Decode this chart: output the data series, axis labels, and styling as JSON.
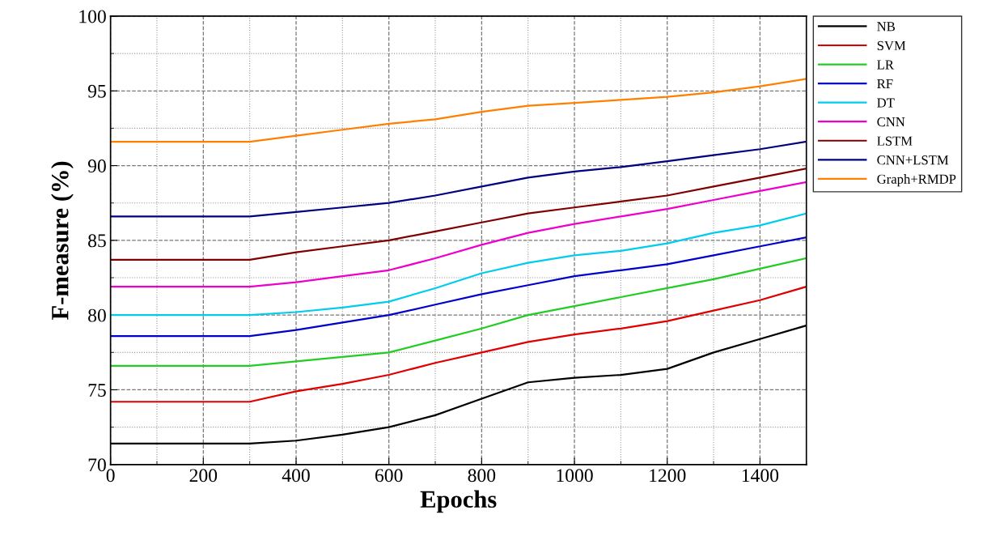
{
  "chart_data": {
    "type": "line",
    "xlabel": "Epochs",
    "ylabel": "F-measure (%)",
    "x": [
      0,
      100,
      200,
      300,
      400,
      500,
      600,
      700,
      800,
      900,
      1000,
      1100,
      1200,
      1300,
      1400,
      1500
    ],
    "series": [
      {
        "name": "NB",
        "color": "#000000",
        "values": [
          71.4,
          71.4,
          71.4,
          71.4,
          71.6,
          72.0,
          72.5,
          73.3,
          74.4,
          75.5,
          75.8,
          76.0,
          76.4,
          77.5,
          78.4,
          79.3
        ]
      },
      {
        "name": "SVM",
        "color": "#e00000",
        "values": [
          74.2,
          74.2,
          74.2,
          74.2,
          74.9,
          75.4,
          76.0,
          76.8,
          77.5,
          78.2,
          78.7,
          79.1,
          79.6,
          80.3,
          81.0,
          81.9
        ]
      },
      {
        "name": "LR",
        "color": "#22cc22",
        "values": [
          76.6,
          76.6,
          76.6,
          76.6,
          76.9,
          77.2,
          77.5,
          78.3,
          79.1,
          80.0,
          80.6,
          81.2,
          81.8,
          82.4,
          83.1,
          83.8
        ]
      },
      {
        "name": "RF",
        "color": "#0000cc",
        "values": [
          78.6,
          78.6,
          78.6,
          78.6,
          79.0,
          79.5,
          80.0,
          80.7,
          81.4,
          82.0,
          82.6,
          83.0,
          83.4,
          84.0,
          84.6,
          85.2
        ]
      },
      {
        "name": "DT",
        "color": "#00ccee",
        "values": [
          80.0,
          80.0,
          80.0,
          80.0,
          80.2,
          80.5,
          80.9,
          81.8,
          82.8,
          83.5,
          84.0,
          84.3,
          84.8,
          85.5,
          86.0,
          86.8
        ]
      },
      {
        "name": "CNN",
        "color": "#ee00cc",
        "values": [
          81.9,
          81.9,
          81.9,
          81.9,
          82.2,
          82.6,
          83.0,
          83.8,
          84.7,
          85.5,
          86.1,
          86.6,
          87.1,
          87.7,
          88.3,
          88.9
        ]
      },
      {
        "name": "LSTM",
        "color": "#800000",
        "values": [
          83.7,
          83.7,
          83.7,
          83.7,
          84.2,
          84.6,
          85.0,
          85.6,
          86.2,
          86.8,
          87.2,
          87.6,
          88.0,
          88.6,
          89.2,
          89.8
        ]
      },
      {
        "name": "CNN+LSTM",
        "color": "#000080",
        "values": [
          86.6,
          86.6,
          86.6,
          86.6,
          86.9,
          87.2,
          87.5,
          88.0,
          88.6,
          89.2,
          89.6,
          89.9,
          90.3,
          90.7,
          91.1,
          91.6
        ]
      },
      {
        "name": "Graph+RMDP",
        "color": "#ff8000",
        "values": [
          91.6,
          91.6,
          91.6,
          91.6,
          92.0,
          92.4,
          92.8,
          93.1,
          93.6,
          94.0,
          94.2,
          94.4,
          94.6,
          94.9,
          95.3,
          95.8
        ]
      }
    ],
    "xlim": [
      0,
      1500
    ],
    "xticks": [
      0,
      200,
      400,
      600,
      800,
      1000,
      1200,
      1400
    ],
    "ylim": [
      70,
      100
    ],
    "yticks": [
      70,
      75,
      80,
      85,
      90,
      95,
      100
    ],
    "grid": true,
    "legend": "top right",
    "marker": "none",
    "line_style": "solid"
  }
}
